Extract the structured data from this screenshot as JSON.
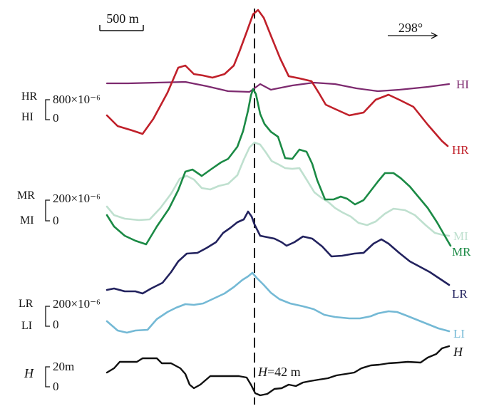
{
  "chart_data": {
    "type": "line",
    "scale_bar": "500 m",
    "direction": "298°",
    "center_annotation": "H=42 m",
    "scales": {
      "upper": {
        "labels": [
          "HR",
          "HI"
        ],
        "max": "800×10⁻⁶",
        "min": "0"
      },
      "middle": {
        "labels": [
          "MR",
          "MI"
        ],
        "max": "200×10⁻⁶",
        "min": "0"
      },
      "lower": {
        "labels": [
          "LR",
          "LI"
        ],
        "max": "200×10⁻⁶",
        "min": "0"
      },
      "height": {
        "labels": [
          "H"
        ],
        "max": "20m",
        "min": "0"
      }
    },
    "series": [
      {
        "name": "HI",
        "color": "#7d2a6f",
        "points": [
          [
            150,
            117
          ],
          [
            180,
            117
          ],
          [
            220,
            116
          ],
          [
            260,
            115
          ],
          [
            290,
            121
          ],
          [
            320,
            128
          ],
          [
            350,
            129
          ],
          [
            365,
            118
          ],
          [
            380,
            126
          ],
          [
            410,
            120
          ],
          [
            440,
            116
          ],
          [
            470,
            118
          ],
          [
            500,
            124
          ],
          [
            530,
            128
          ],
          [
            560,
            126
          ],
          [
            600,
            122
          ],
          [
            630,
            118
          ]
        ]
      },
      {
        "name": "HR",
        "color": "#c0202a",
        "points": [
          [
            150,
            162
          ],
          [
            165,
            177
          ],
          [
            185,
            183
          ],
          [
            200,
            188
          ],
          [
            215,
            167
          ],
          [
            235,
            130
          ],
          [
            250,
            95
          ],
          [
            260,
            92
          ],
          [
            272,
            104
          ],
          [
            285,
            106
          ],
          [
            298,
            109
          ],
          [
            315,
            104
          ],
          [
            328,
            92
          ],
          [
            336,
            72
          ],
          [
            346,
            45
          ],
          [
            355,
            20
          ],
          [
            362,
            14
          ],
          [
            370,
            25
          ],
          [
            380,
            50
          ],
          [
            393,
            82
          ],
          [
            405,
            107
          ],
          [
            420,
            110
          ],
          [
            437,
            114
          ],
          [
            447,
            130
          ],
          [
            457,
            147
          ],
          [
            470,
            153
          ],
          [
            490,
            162
          ],
          [
            510,
            158
          ],
          [
            527,
            140
          ],
          [
            545,
            133
          ],
          [
            560,
            140
          ],
          [
            580,
            150
          ],
          [
            600,
            175
          ],
          [
            620,
            198
          ],
          [
            628,
            205
          ]
        ]
      },
      {
        "name": "MI",
        "color": "#bfe0cf",
        "points": [
          [
            150,
            290
          ],
          [
            160,
            302
          ],
          [
            175,
            307
          ],
          [
            195,
            309
          ],
          [
            210,
            308
          ],
          [
            225,
            292
          ],
          [
            240,
            272
          ],
          [
            252,
            251
          ],
          [
            262,
            247
          ],
          [
            272,
            252
          ],
          [
            283,
            264
          ],
          [
            295,
            266
          ],
          [
            307,
            261
          ],
          [
            320,
            258
          ],
          [
            333,
            246
          ],
          [
            342,
            224
          ],
          [
            350,
            207
          ],
          [
            357,
            200
          ],
          [
            365,
            203
          ],
          [
            373,
            214
          ],
          [
            381,
            226
          ],
          [
            391,
            231
          ],
          [
            400,
            236
          ],
          [
            410,
            237
          ],
          [
            420,
            236
          ],
          [
            430,
            252
          ],
          [
            441,
            270
          ],
          [
            450,
            277
          ],
          [
            461,
            284
          ],
          [
            470,
            292
          ],
          [
            480,
            298
          ],
          [
            492,
            304
          ],
          [
            503,
            313
          ],
          [
            515,
            316
          ],
          [
            527,
            311
          ],
          [
            540,
            300
          ],
          [
            552,
            293
          ],
          [
            568,
            295
          ],
          [
            582,
            302
          ],
          [
            597,
            316
          ],
          [
            610,
            327
          ],
          [
            622,
            330
          ],
          [
            630,
            331
          ]
        ]
      },
      {
        "name": "MR",
        "color": "#1b8a45",
        "points": [
          [
            150,
            302
          ],
          [
            160,
            318
          ],
          [
            175,
            331
          ],
          [
            190,
            338
          ],
          [
            205,
            343
          ],
          [
            220,
            318
          ],
          [
            237,
            293
          ],
          [
            250,
            267
          ],
          [
            260,
            241
          ],
          [
            270,
            238
          ],
          [
            283,
            247
          ],
          [
            297,
            237
          ],
          [
            310,
            228
          ],
          [
            320,
            223
          ],
          [
            333,
            206
          ],
          [
            341,
            184
          ],
          [
            348,
            155
          ],
          [
            352,
            134
          ],
          [
            355,
            125
          ],
          [
            359,
            132
          ],
          [
            365,
            160
          ],
          [
            371,
            174
          ],
          [
            380,
            185
          ],
          [
            390,
            192
          ],
          [
            400,
            222
          ],
          [
            410,
            223
          ],
          [
            420,
            210
          ],
          [
            430,
            213
          ],
          [
            438,
            230
          ],
          [
            445,
            253
          ],
          [
            456,
            280
          ],
          [
            468,
            280
          ],
          [
            478,
            276
          ],
          [
            487,
            279
          ],
          [
            498,
            287
          ],
          [
            510,
            281
          ],
          [
            520,
            268
          ],
          [
            530,
            255
          ],
          [
            540,
            243
          ],
          [
            552,
            243
          ],
          [
            562,
            250
          ],
          [
            575,
            262
          ],
          [
            590,
            280
          ],
          [
            600,
            292
          ],
          [
            613,
            312
          ],
          [
            625,
            333
          ],
          [
            632,
            345
          ]
        ]
      },
      {
        "name": "LR",
        "color": "#22225e",
        "points": [
          [
            150,
            407
          ],
          [
            160,
            405
          ],
          [
            175,
            409
          ],
          [
            190,
            409
          ],
          [
            200,
            412
          ],
          [
            212,
            405
          ],
          [
            228,
            397
          ],
          [
            240,
            382
          ],
          [
            250,
            367
          ],
          [
            262,
            356
          ],
          [
            277,
            355
          ],
          [
            290,
            348
          ],
          [
            303,
            340
          ],
          [
            313,
            327
          ],
          [
            323,
            320
          ],
          [
            333,
            312
          ],
          [
            342,
            308
          ],
          [
            348,
            297
          ],
          [
            353,
            304
          ],
          [
            357,
            315
          ],
          [
            365,
            331
          ],
          [
            375,
            333
          ],
          [
            385,
            335
          ],
          [
            395,
            340
          ],
          [
            402,
            345
          ],
          [
            413,
            340
          ],
          [
            425,
            332
          ],
          [
            438,
            335
          ],
          [
            452,
            346
          ],
          [
            465,
            360
          ],
          [
            480,
            359
          ],
          [
            497,
            356
          ],
          [
            510,
            355
          ],
          [
            524,
            342
          ],
          [
            535,
            336
          ],
          [
            545,
            342
          ],
          [
            560,
            355
          ],
          [
            575,
            367
          ],
          [
            590,
            375
          ],
          [
            603,
            382
          ],
          [
            618,
            392
          ],
          [
            630,
            400
          ]
        ]
      },
      {
        "name": "LI",
        "color": "#74b9d5",
        "points": [
          [
            150,
            451
          ],
          [
            165,
            464
          ],
          [
            178,
            467
          ],
          [
            190,
            464
          ],
          [
            207,
            463
          ],
          [
            220,
            448
          ],
          [
            235,
            438
          ],
          [
            247,
            432
          ],
          [
            260,
            427
          ],
          [
            272,
            428
          ],
          [
            285,
            426
          ],
          [
            300,
            419
          ],
          [
            315,
            412
          ],
          [
            328,
            403
          ],
          [
            340,
            393
          ],
          [
            348,
            388
          ],
          [
            354,
            383
          ],
          [
            360,
            390
          ],
          [
            370,
            400
          ],
          [
            380,
            411
          ],
          [
            392,
            420
          ],
          [
            407,
            426
          ],
          [
            425,
            430
          ],
          [
            440,
            434
          ],
          [
            455,
            442
          ],
          [
            470,
            445
          ],
          [
            490,
            447
          ],
          [
            505,
            447
          ],
          [
            520,
            444
          ],
          [
            530,
            440
          ],
          [
            545,
            437
          ],
          [
            557,
            438
          ],
          [
            570,
            443
          ],
          [
            585,
            449
          ],
          [
            600,
            455
          ],
          [
            615,
            461
          ],
          [
            630,
            465
          ]
        ]
      },
      {
        "name": "H",
        "color": "#111111",
        "points": [
          [
            150,
            523
          ],
          [
            160,
            517
          ],
          [
            168,
            508
          ],
          [
            182,
            508
          ],
          [
            192,
            508
          ],
          [
            200,
            503
          ],
          [
            210,
            503
          ],
          [
            220,
            503
          ],
          [
            227,
            510
          ],
          [
            240,
            510
          ],
          [
            253,
            517
          ],
          [
            260,
            525
          ],
          [
            266,
            540
          ],
          [
            272,
            545
          ],
          [
            281,
            540
          ],
          [
            288,
            534
          ],
          [
            295,
            528
          ],
          [
            305,
            528
          ],
          [
            320,
            528
          ],
          [
            335,
            528
          ],
          [
            346,
            530
          ],
          [
            352,
            540
          ],
          [
            358,
            552
          ],
          [
            365,
            555
          ],
          [
            375,
            553
          ],
          [
            385,
            546
          ],
          [
            395,
            545
          ],
          [
            405,
            540
          ],
          [
            415,
            542
          ],
          [
            425,
            537
          ],
          [
            435,
            535
          ],
          [
            447,
            533
          ],
          [
            460,
            531
          ],
          [
            472,
            527
          ],
          [
            485,
            525
          ],
          [
            497,
            523
          ],
          [
            507,
            517
          ],
          [
            520,
            513
          ],
          [
            532,
            512
          ],
          [
            545,
            510
          ],
          [
            560,
            509
          ],
          [
            572,
            508
          ],
          [
            590,
            509
          ],
          [
            600,
            502
          ],
          [
            612,
            497
          ],
          [
            620,
            489
          ],
          [
            630,
            486
          ]
        ]
      }
    ]
  }
}
